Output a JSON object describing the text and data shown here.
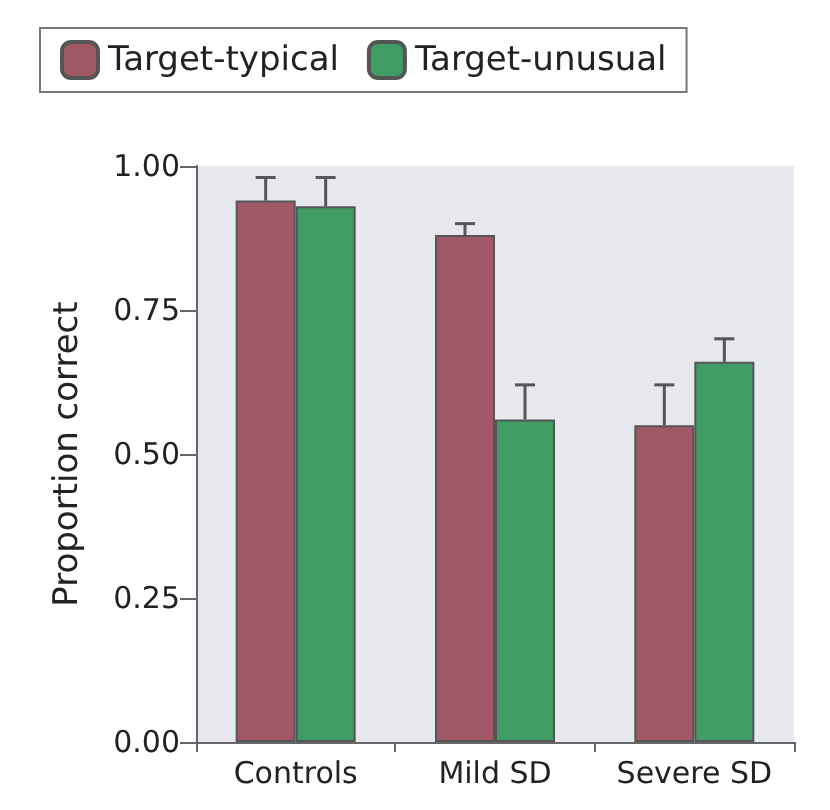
{
  "chart_data": {
    "type": "bar",
    "ylabel": "Proportion correct",
    "categories": [
      "Controls",
      "Mild SD",
      "Severe SD"
    ],
    "series": [
      {
        "name": "Target-typical",
        "color": "#a05868",
        "values": [
          0.94,
          0.88,
          0.55
        ],
        "errors": [
          [
            0.94,
            0.98
          ],
          [
            0.88,
            0.9
          ],
          [
            0.55,
            0.62
          ]
        ]
      },
      {
        "name": "Target-unusual",
        "color": "#3f9c62",
        "values": [
          0.93,
          0.56,
          0.66
        ],
        "errors": [
          [
            0.93,
            0.98
          ],
          [
            0.56,
            0.62
          ],
          [
            0.66,
            0.7
          ]
        ]
      }
    ],
    "ylim": [
      0,
      1
    ],
    "yticks": [
      {
        "value": 0,
        "label": "0.00"
      },
      {
        "value": 0.25,
        "label": "0.25"
      },
      {
        "value": 0.5,
        "label": "0.50"
      },
      {
        "value": 0.75,
        "label": "0.75"
      },
      {
        "value": 1,
        "label": "1.00"
      }
    ],
    "grid": false,
    "legend": "top"
  }
}
